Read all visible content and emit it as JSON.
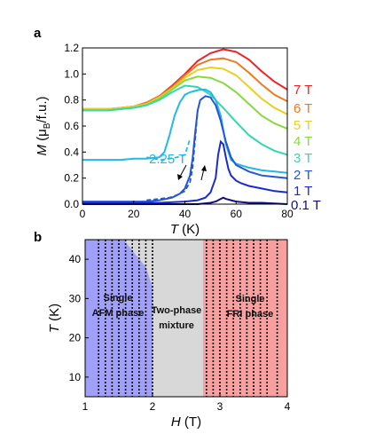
{
  "panels": {
    "a": {
      "label": "a"
    },
    "b": {
      "label": "b"
    }
  },
  "chart_data": [
    {
      "panel": "a",
      "type": "line",
      "xlabel": "T (K)",
      "ylabel": "M (μB/f.u.)",
      "xlim": [
        0,
        80
      ],
      "ylim": [
        0,
        1.2
      ],
      "xticks": [
        "0",
        "20",
        "40",
        "60",
        "80"
      ],
      "yticks": [
        "0.0",
        "0.2",
        "0.4",
        "0.6",
        "0.8",
        "1.0",
        "1.2"
      ],
      "series": [
        {
          "name": "7 T",
          "color": "#ee2222",
          "x": [
            0,
            5,
            10,
            15,
            20,
            25,
            30,
            35,
            40,
            45,
            50,
            55,
            60,
            65,
            70,
            75,
            80
          ],
          "values": [
            0.73,
            0.73,
            0.73,
            0.74,
            0.75,
            0.78,
            0.83,
            0.91,
            1.0,
            1.1,
            1.16,
            1.19,
            1.17,
            1.11,
            1.02,
            0.94,
            0.88
          ]
        },
        {
          "name": "6 T",
          "color": "#f07820",
          "x": [
            0,
            5,
            10,
            15,
            20,
            25,
            30,
            35,
            40,
            45,
            50,
            55,
            60,
            65,
            70,
            75,
            80
          ],
          "values": [
            0.73,
            0.73,
            0.73,
            0.74,
            0.75,
            0.78,
            0.83,
            0.9,
            0.99,
            1.07,
            1.11,
            1.12,
            1.09,
            1.01,
            0.92,
            0.84,
            0.79
          ]
        },
        {
          "name": "5 T",
          "color": "#e8d020",
          "x": [
            0,
            5,
            10,
            15,
            20,
            25,
            30,
            35,
            40,
            45,
            50,
            55,
            60,
            65,
            70,
            75,
            80
          ],
          "values": [
            0.73,
            0.73,
            0.73,
            0.74,
            0.75,
            0.77,
            0.82,
            0.89,
            0.97,
            1.03,
            1.05,
            1.04,
            0.99,
            0.9,
            0.81,
            0.74,
            0.69
          ]
        },
        {
          "name": "4 T",
          "color": "#88d840",
          "x": [
            0,
            5,
            10,
            15,
            20,
            25,
            30,
            35,
            40,
            45,
            50,
            55,
            60,
            65,
            70,
            75,
            80
          ],
          "values": [
            0.72,
            0.72,
            0.72,
            0.73,
            0.74,
            0.76,
            0.81,
            0.88,
            0.95,
            0.98,
            0.97,
            0.93,
            0.86,
            0.77,
            0.68,
            0.62,
            0.58
          ]
        },
        {
          "name": "3 T",
          "color": "#30d8b0",
          "x": [
            0,
            5,
            10,
            15,
            20,
            25,
            30,
            35,
            40,
            45,
            50,
            55,
            60,
            65,
            70,
            75,
            80
          ],
          "values": [
            0.72,
            0.72,
            0.72,
            0.73,
            0.74,
            0.76,
            0.8,
            0.86,
            0.91,
            0.9,
            0.84,
            0.74,
            0.63,
            0.53,
            0.46,
            0.41,
            0.38
          ]
        },
        {
          "name": "2.25 T",
          "color": "#22b8e8",
          "x": [
            0,
            5,
            10,
            15,
            20,
            25,
            30,
            32,
            34,
            36,
            38,
            40,
            42,
            44,
            46,
            48,
            50,
            52,
            54,
            56,
            58,
            60,
            65,
            70,
            75,
            80
          ],
          "values": [
            0.34,
            0.34,
            0.34,
            0.34,
            0.35,
            0.35,
            0.36,
            0.4,
            0.53,
            0.68,
            0.78,
            0.84,
            0.86,
            0.87,
            0.88,
            0.88,
            0.86,
            0.8,
            0.68,
            0.46,
            0.34,
            0.31,
            0.28,
            0.26,
            0.25,
            0.24
          ]
        },
        {
          "name": "2 T",
          "color": "#2255d8",
          "x": [
            0,
            10,
            20,
            25,
            30,
            35,
            38,
            40,
            42,
            43,
            44,
            45,
            46,
            48,
            50,
            52,
            54,
            56,
            58,
            60,
            65,
            70,
            75,
            80
          ],
          "values": [
            0.02,
            0.02,
            0.02,
            0.02,
            0.03,
            0.05,
            0.08,
            0.12,
            0.22,
            0.35,
            0.55,
            0.72,
            0.8,
            0.83,
            0.82,
            0.76,
            0.64,
            0.48,
            0.36,
            0.3,
            0.25,
            0.22,
            0.21,
            0.2
          ]
        },
        {
          "name": "1 T",
          "color": "#1a2ad0",
          "x": [
            0,
            10,
            20,
            30,
            40,
            45,
            48,
            50,
            52,
            53,
            54,
            55,
            56,
            57,
            58,
            60,
            62,
            65,
            70,
            75,
            80
          ],
          "values": [
            0.01,
            0.01,
            0.01,
            0.01,
            0.02,
            0.03,
            0.05,
            0.09,
            0.2,
            0.38,
            0.48,
            0.46,
            0.36,
            0.27,
            0.22,
            0.18,
            0.16,
            0.14,
            0.12,
            0.1,
            0.09
          ]
        },
        {
          "name": "0.1 T",
          "color": "#101080",
          "x": [
            0,
            10,
            20,
            30,
            40,
            45,
            50,
            52,
            54,
            55,
            56,
            58,
            60,
            65,
            70,
            80
          ],
          "values": [
            0.0,
            0.0,
            0.0,
            0.0,
            0.0,
            0.0,
            0.01,
            0.02,
            0.04,
            0.05,
            0.04,
            0.03,
            0.02,
            0.01,
            0.01,
            0.0
          ]
        }
      ],
      "dashed_branches": [
        {
          "field": "2.25 T",
          "color": "#22b8e8",
          "x": [
            25,
            28,
            31,
            34,
            37,
            40,
            42
          ],
          "values": [
            0.36,
            0.35,
            0.34,
            0.35,
            0.36,
            0.38,
            0.5
          ]
        },
        {
          "field": "2 T",
          "color": "#2255d8",
          "x": [
            25,
            30,
            34,
            37,
            40,
            42,
            43,
            44,
            45
          ],
          "values": [
            0.03,
            0.04,
            0.05,
            0.07,
            0.1,
            0.17,
            0.28,
            0.5,
            0.72
          ]
        }
      ],
      "annotations": [
        "2.25 T"
      ]
    },
    {
      "panel": "b",
      "type": "heatmap",
      "xlabel": "H (T)",
      "ylabel": "T (K)",
      "xlim": [
        1,
        4
      ],
      "ylim": [
        5,
        45
      ],
      "xticks": [
        "1",
        "2",
        "3",
        "4"
      ],
      "yticks": [
        "10",
        "20",
        "30",
        "40"
      ],
      "regions": [
        {
          "name": "Single AFM phase",
          "lines": [
            "Single",
            "AFM phase"
          ],
          "color": "#a0a0f8",
          "h_range": [
            1,
            2
          ]
        },
        {
          "name": "Two-phase mixture",
          "lines": [
            "Two-phase",
            "mixture"
          ],
          "color": "#d8d8d8",
          "h_range": [
            2,
            2.75
          ]
        },
        {
          "name": "Single FRI phase",
          "lines": [
            "Single",
            "FRI phase"
          ],
          "color": "#f8a0a0",
          "h_range": [
            2.75,
            4
          ]
        }
      ],
      "transition_fields": [
        1.2,
        1.3,
        1.4,
        1.5,
        1.6,
        1.7,
        1.8,
        1.9,
        2.0,
        2.8,
        2.9,
        3.0,
        3.1,
        3.2,
        3.3,
        3.4,
        3.5,
        3.6,
        3.7,
        3.85
      ]
    }
  ]
}
